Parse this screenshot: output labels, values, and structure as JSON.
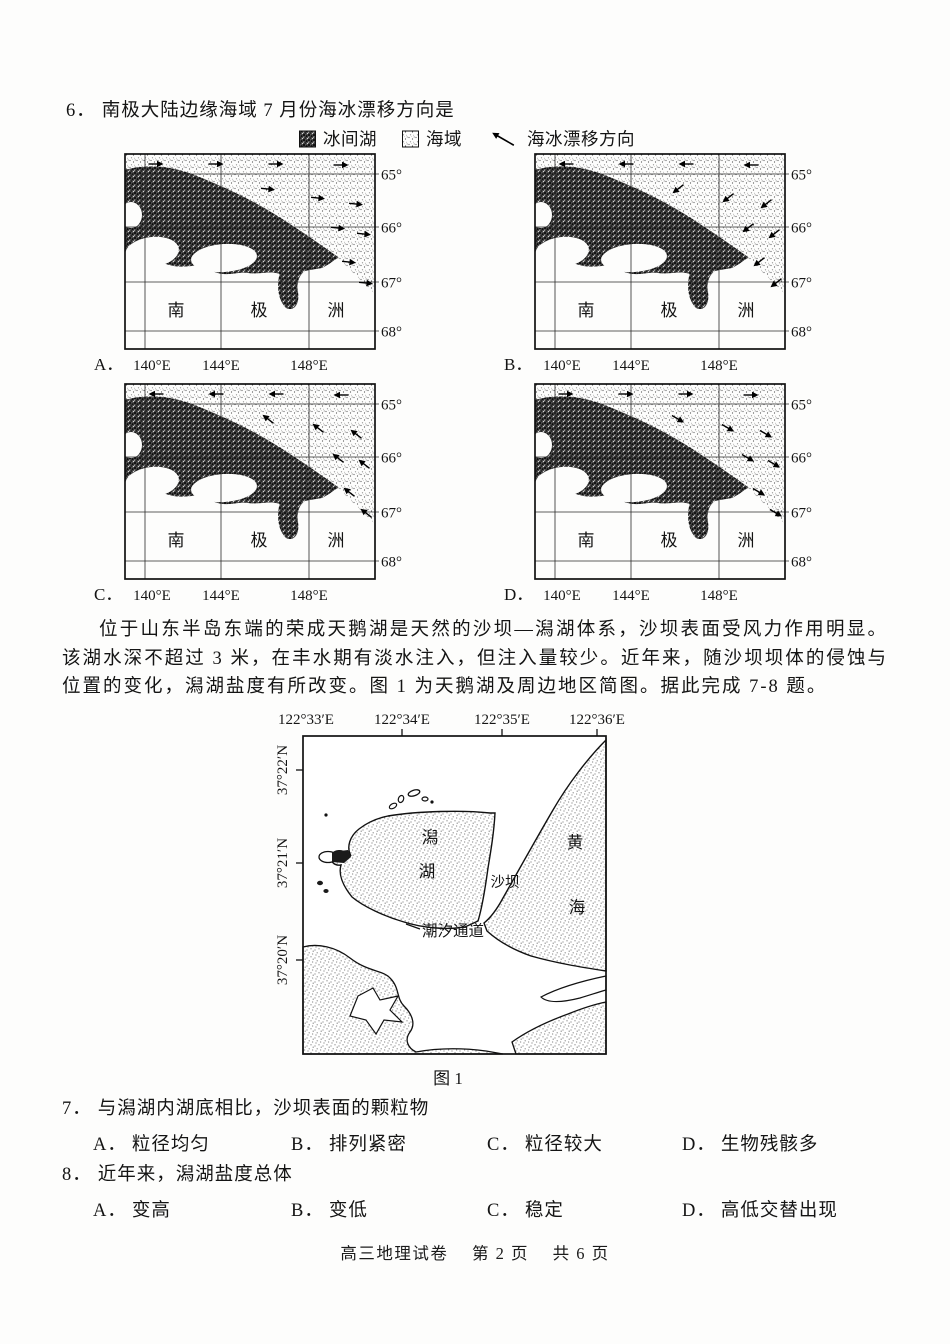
{
  "q6": {
    "number": "6．",
    "text": "南极大陆边缘海域 7 月份海冰漂移方向是",
    "legend": {
      "polynya_label": "冰间湖",
      "sea_label": "海域",
      "drift_label": "海冰漂移方向"
    },
    "maps": {
      "lat_labels": [
        "65°",
        "66°",
        "67°",
        "68°"
      ],
      "lon_labels": [
        "140°E",
        "144°E",
        "148°E"
      ],
      "land_chars": [
        "南",
        "极",
        "洲"
      ],
      "panels": [
        {
          "letter": "A．",
          "drift_direction": "向东",
          "open_sea_angle": 0,
          "coastal_angle": 6
        },
        {
          "letter": "B．",
          "drift_direction": "向西南",
          "open_sea_angle": 180,
          "coastal_angle": 142
        },
        {
          "letter": "C．",
          "drift_direction": "向西北",
          "open_sea_angle": 180,
          "coastal_angle": -142
        },
        {
          "letter": "D．",
          "drift_direction": "向东南",
          "open_sea_angle": 0,
          "coastal_angle": 30
        }
      ]
    }
  },
  "passage": "位于山东半岛东端的荣成天鹅湖是天然的沙坝—潟湖体系，沙坝表面受风力作用明显。该湖水深不超过 3 米，在丰水期有淡水注入，但注入量较少。近年来，随沙坝坝体的侵蚀与位置的变化，潟湖盐度有所改变。图 1 为天鹅湖及周边地区简图。据此完成 7-8 题。",
  "fig1": {
    "lon_labels": [
      "122°33′E",
      "122°34′E",
      "122°35′E",
      "122°36′E"
    ],
    "lat_labels": [
      "37°22′N",
      "37°21′N",
      "37°20′N"
    ],
    "labels": {
      "lagoon": "潟湖",
      "sandbar": "沙坝",
      "sea": "黄海",
      "channel": "潮汐通道"
    },
    "caption": "图 1"
  },
  "q7": {
    "number": "7．",
    "text": "与潟湖内湖底相比，沙坝表面的颗粒物",
    "options": [
      {
        "key": "A．",
        "text": "粒径均匀"
      },
      {
        "key": "B．",
        "text": "排列紧密"
      },
      {
        "key": "C．",
        "text": "粒径较大"
      },
      {
        "key": "D．",
        "text": "生物残骸多"
      }
    ]
  },
  "q8": {
    "number": "8．",
    "text": "近年来，潟湖盐度总体",
    "options": [
      {
        "key": "A．",
        "text": "变高"
      },
      {
        "key": "B．",
        "text": "变低"
      },
      {
        "key": "C．",
        "text": "稳定"
      },
      {
        "key": "D．",
        "text": "高低交替出现"
      }
    ]
  },
  "footer": "高三地理试卷　 第 2 页　 共 6 页"
}
